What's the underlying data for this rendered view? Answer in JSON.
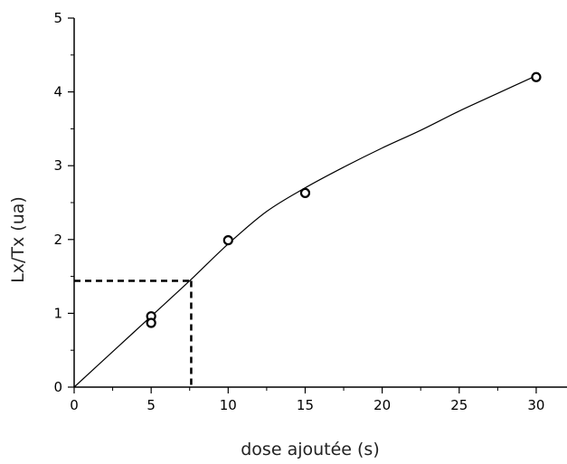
{
  "chart_data": {
    "type": "scatter",
    "title": "",
    "xlabel": "dose ajoutée (s)",
    "ylabel": "Lx/Tx (ua)",
    "xlim": [
      0,
      32
    ],
    "ylim": [
      0,
      5
    ],
    "x_ticks": [
      0,
      5,
      10,
      15,
      20,
      25,
      30
    ],
    "x_tick_labels": [
      "0",
      "5",
      "10",
      "15",
      "20",
      "25",
      "30"
    ],
    "y_ticks": [
      0,
      1,
      2,
      3,
      4,
      5
    ],
    "y_tick_labels": [
      "0",
      "1",
      "2",
      "3",
      "4",
      "5"
    ],
    "grid": false,
    "legend": "none",
    "series": [
      {
        "marker": "open-circle",
        "points": [
          {
            "x": 5,
            "y": 0.96
          },
          {
            "x": 5,
            "y": 0.87
          },
          {
            "x": 10,
            "y": 1.99
          },
          {
            "x": 15,
            "y": 2.63
          },
          {
            "x": 30,
            "y": 4.2
          }
        ]
      }
    ],
    "fit_curve": {
      "style": "solid",
      "points": [
        {
          "x": 0,
          "y": 0
        },
        {
          "x": 2.5,
          "y": 0.48
        },
        {
          "x": 5,
          "y": 0.96
        },
        {
          "x": 7.5,
          "y": 1.44
        },
        {
          "x": 10,
          "y": 1.94
        },
        {
          "x": 12.5,
          "y": 2.38
        },
        {
          "x": 15,
          "y": 2.7
        },
        {
          "x": 17.5,
          "y": 2.98
        },
        {
          "x": 20,
          "y": 3.24
        },
        {
          "x": 22.5,
          "y": 3.48
        },
        {
          "x": 25,
          "y": 3.74
        },
        {
          "x": 27.5,
          "y": 3.98
        },
        {
          "x": 30,
          "y": 4.22
        }
      ]
    },
    "reference_lines": {
      "style": "dashed",
      "x": 7.6,
      "y": 1.44
    }
  }
}
